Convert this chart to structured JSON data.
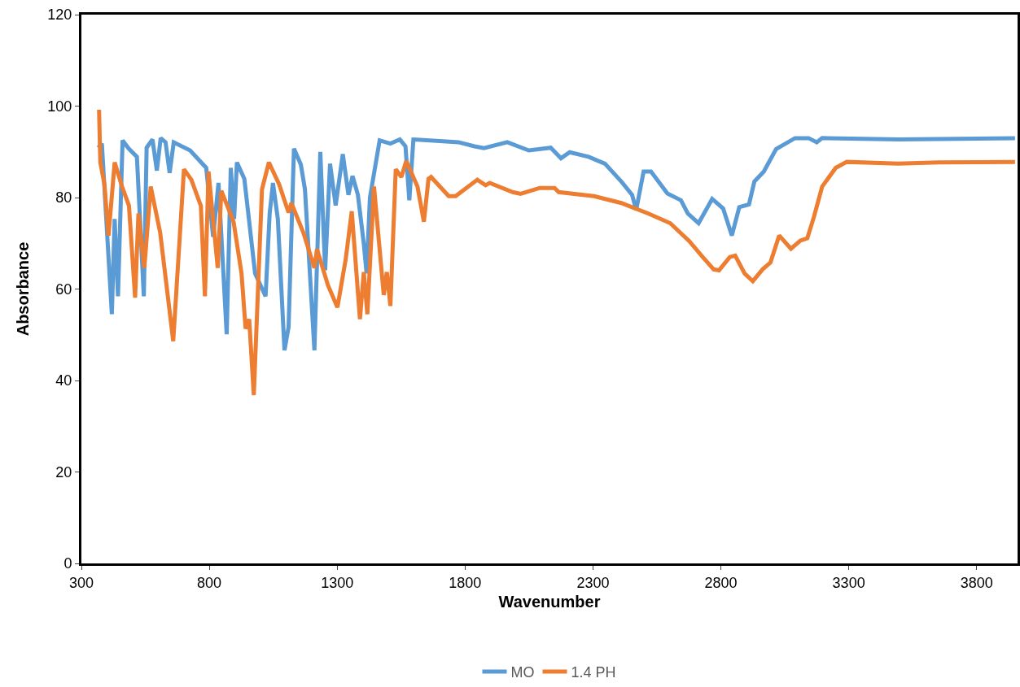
{
  "chart_data": {
    "type": "line",
    "xlabel": "Wavenumber",
    "ylabel": "Absorbance",
    "xlim": [
      300,
      3960
    ],
    "xticks": [
      300,
      800,
      1300,
      1800,
      2300,
      2800,
      3300,
      3800
    ],
    "ylim": [
      0,
      120
    ],
    "yticks": [
      0,
      20,
      40,
      60,
      80,
      100,
      120
    ],
    "legend": "bottom",
    "marker": "none",
    "line_style": "solid",
    "series": [
      {
        "name": "MO",
        "color": "#5b9bd5",
        "x": [
          366,
          380,
          419,
          430,
          443,
          461,
          485,
          517,
          544,
          555,
          578,
          595,
          610,
          629,
          645,
          661,
          725,
          788,
          815,
          836,
          868,
          884,
          897,
          908,
          937,
          979,
          1020,
          1036,
          1049,
          1068,
          1094,
          1110,
          1131,
          1158,
          1174,
          1211,
          1234,
          1253,
          1272,
          1294,
          1322,
          1344,
          1360,
          1381,
          1404,
          1415,
          1428,
          1466,
          1508,
          1545,
          1567,
          1582,
          1598,
          1689,
          1774,
          1837,
          1874,
          1965,
          2049,
          2135,
          2175,
          2209,
          2283,
          2347,
          2411,
          2453,
          2469,
          2498,
          2527,
          2591,
          2644,
          2671,
          2713,
          2766,
          2809,
          2843,
          2872,
          2910,
          2931,
          2968,
          3016,
          3090,
          3143,
          3175,
          3196,
          3497,
          3950
        ],
        "values": [
          90.9,
          91.8,
          54.5,
          75.3,
          58.4,
          92.5,
          90.7,
          88.9,
          58.4,
          90.9,
          92.7,
          85.9,
          93.0,
          92.1,
          85.4,
          92.1,
          90.3,
          86.5,
          71.4,
          83.2,
          50.1,
          86.5,
          75.3,
          87.7,
          84.1,
          63.4,
          58.4,
          76.5,
          83.2,
          75.3,
          46.6,
          51.7,
          90.7,
          87.2,
          81.8,
          46.6,
          90.0,
          64.1,
          87.4,
          78.3,
          89.5,
          80.6,
          84.7,
          80.6,
          69.9,
          63.4,
          80.0,
          92.5,
          91.8,
          92.7,
          91.2,
          79.4,
          92.7,
          92.4,
          92.1,
          91.2,
          90.8,
          92.1,
          90.3,
          90.9,
          88.6,
          89.9,
          88.9,
          87.4,
          83.5,
          80.6,
          77.3,
          85.7,
          85.7,
          80.9,
          79.4,
          76.5,
          74.4,
          79.7,
          77.6,
          71.7,
          77.9,
          78.5,
          83.5,
          85.7,
          90.6,
          93.0,
          93.0,
          92.1,
          93.0,
          92.7,
          93.0
        ]
      },
      {
        "name": "1.4 PH",
        "color": "#ed7d31",
        "x": [
          369,
          374,
          390,
          406,
          430,
          459,
          486,
          510,
          523,
          546,
          571,
          608,
          659,
          701,
          730,
          767,
          783,
          797,
          833,
          847,
          895,
          926,
          942,
          956,
          974,
          1006,
          1033,
          1073,
          1110,
          1121,
          1168,
          1211,
          1221,
          1264,
          1301,
          1333,
          1357,
          1389,
          1404,
          1418,
          1444,
          1482,
          1494,
          1508,
          1529,
          1551,
          1570,
          1614,
          1639,
          1657,
          1667,
          1736,
          1763,
          1848,
          1880,
          1896,
          1986,
          2017,
          2092,
          2150,
          2166,
          2304,
          2411,
          2517,
          2602,
          2676,
          2729,
          2772,
          2793,
          2835,
          2856,
          2893,
          2925,
          2963,
          2994,
          3028,
          3074,
          3111,
          3138,
          3164,
          3196,
          3249,
          3292,
          3493,
          3653,
          3950
        ],
        "values": [
          99.2,
          87.7,
          82.9,
          71.7,
          87.7,
          82.4,
          78.2,
          58.1,
          76.5,
          64.6,
          82.4,
          72.3,
          48.6,
          86.2,
          83.9,
          78.2,
          58.4,
          85.7,
          64.6,
          81.5,
          74.7,
          63.4,
          51.3,
          53.4,
          36.8,
          81.8,
          87.7,
          82.9,
          76.7,
          78.8,
          72.3,
          64.6,
          68.7,
          60.8,
          56.0,
          66.4,
          77.0,
          53.4,
          63.7,
          54.5,
          82.4,
          58.7,
          63.7,
          56.3,
          86.2,
          84.5,
          88.0,
          82.4,
          74.7,
          84.1,
          84.5,
          80.3,
          80.3,
          83.9,
          82.7,
          83.2,
          81.2,
          80.8,
          82.1,
          82.1,
          81.2,
          80.3,
          78.8,
          76.5,
          74.4,
          70.5,
          67.0,
          64.3,
          64.1,
          67.0,
          67.3,
          63.4,
          61.7,
          64.3,
          65.8,
          71.7,
          68.8,
          70.6,
          71.1,
          75.8,
          82.4,
          86.5,
          87.8,
          87.4,
          87.7,
          87.8
        ]
      }
    ]
  }
}
